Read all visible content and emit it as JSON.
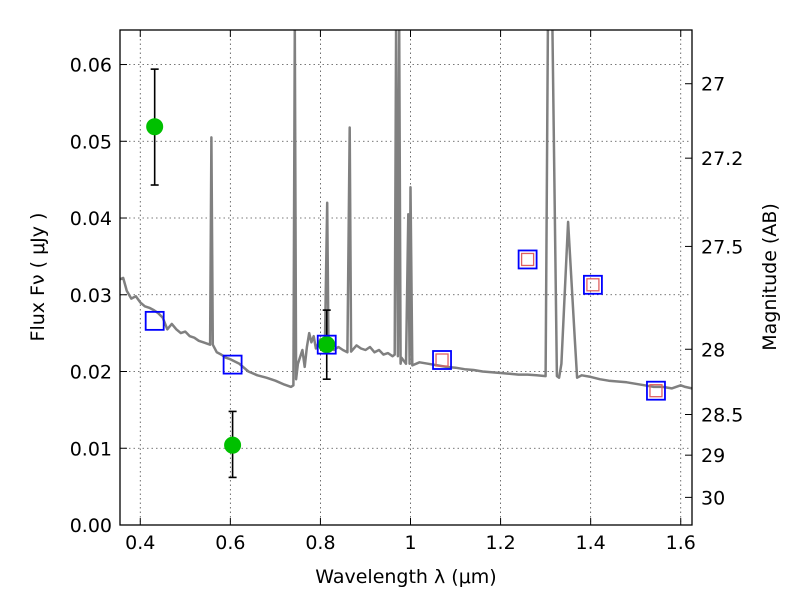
{
  "chart_data": {
    "type": "scatter",
    "xlabel": "Wavelength  λ (μm)",
    "ylabel": "Flux  Fν  ( μJy )",
    "y2label": "Magnitude (AB)",
    "xlim": [
      0.355,
      1.625
    ],
    "ylim": [
      0.0,
      0.0645
    ],
    "grid": true,
    "x_ticks": [
      0.4,
      0.6,
      0.8,
      1.0,
      1.2,
      1.4,
      1.6
    ],
    "x_tick_labels": [
      "0.4",
      "0.6",
      "0.8",
      "1",
      "1.2",
      "1.4",
      "1.6"
    ],
    "y_ticks": [
      0.0,
      0.01,
      0.02,
      0.03,
      0.04,
      0.05,
      0.06
    ],
    "y_tick_labels": [
      "0.00",
      "0.01",
      "0.02",
      "0.03",
      "0.04",
      "0.05",
      "0.06"
    ],
    "y2_ticks": [
      {
        "label": "27",
        "flux": 0.0575
      },
      {
        "label": "27.2",
        "flux": 0.0478
      },
      {
        "label": "27.5",
        "flux": 0.0363
      },
      {
        "label": "28",
        "flux": 0.0229
      },
      {
        "label": "28.5",
        "flux": 0.0144
      },
      {
        "label": "29",
        "flux": 0.0091
      },
      {
        "label": "30",
        "flux": 0.0036
      }
    ],
    "series": [
      {
        "kind": "line",
        "color": "#808080",
        "points": [
          [
            0.355,
            0.032
          ],
          [
            0.362,
            0.0322
          ],
          [
            0.37,
            0.0305
          ],
          [
            0.38,
            0.0295
          ],
          [
            0.39,
            0.0298
          ],
          [
            0.4,
            0.029
          ],
          [
            0.41,
            0.0285
          ],
          [
            0.42,
            0.0283
          ],
          [
            0.43,
            0.028
          ],
          [
            0.44,
            0.0276
          ],
          [
            0.45,
            0.027
          ],
          [
            0.46,
            0.0255
          ],
          [
            0.47,
            0.0262
          ],
          [
            0.48,
            0.0255
          ],
          [
            0.49,
            0.025
          ],
          [
            0.5,
            0.0252
          ],
          [
            0.51,
            0.0246
          ],
          [
            0.52,
            0.0244
          ],
          [
            0.53,
            0.024
          ],
          [
            0.54,
            0.0238
          ],
          [
            0.555,
            0.0235
          ],
          [
            0.558,
            0.0505
          ],
          [
            0.561,
            0.0235
          ],
          [
            0.57,
            0.0225
          ],
          [
            0.58,
            0.0222
          ],
          [
            0.59,
            0.0218
          ],
          [
            0.6,
            0.0216
          ],
          [
            0.62,
            0.021
          ],
          [
            0.64,
            0.02
          ],
          [
            0.66,
            0.0195
          ],
          [
            0.68,
            0.0192
          ],
          [
            0.7,
            0.0188
          ],
          [
            0.72,
            0.0183
          ],
          [
            0.735,
            0.018
          ],
          [
            0.74,
            0.0182
          ],
          [
            0.743,
            0.065
          ],
          [
            0.746,
            0.019
          ],
          [
            0.75,
            0.021
          ],
          [
            0.76,
            0.0228
          ],
          [
            0.765,
            0.0206
          ],
          [
            0.77,
            0.0232
          ],
          [
            0.775,
            0.025
          ],
          [
            0.78,
            0.0238
          ],
          [
            0.785,
            0.0246
          ],
          [
            0.79,
            0.023
          ],
          [
            0.8,
            0.0242
          ],
          [
            0.81,
            0.0235
          ],
          [
            0.815,
            0.042
          ],
          [
            0.818,
            0.023
          ],
          [
            0.82,
            0.0236
          ],
          [
            0.83,
            0.0228
          ],
          [
            0.84,
            0.0232
          ],
          [
            0.85,
            0.0228
          ],
          [
            0.86,
            0.0225
          ],
          [
            0.865,
            0.0518
          ],
          [
            0.868,
            0.0226
          ],
          [
            0.88,
            0.0234
          ],
          [
            0.89,
            0.023
          ],
          [
            0.9,
            0.0228
          ],
          [
            0.91,
            0.0232
          ],
          [
            0.92,
            0.0225
          ],
          [
            0.93,
            0.0228
          ],
          [
            0.94,
            0.0222
          ],
          [
            0.95,
            0.0224
          ],
          [
            0.96,
            0.022
          ],
          [
            0.965,
            0.0222
          ],
          [
            0.968,
            0.065
          ],
          [
            0.972,
            0.022
          ],
          [
            0.975,
            0.065
          ],
          [
            0.978,
            0.021
          ],
          [
            0.98,
            0.0218
          ],
          [
            0.99,
            0.021
          ],
          [
            0.995,
            0.0405
          ],
          [
            0.998,
            0.021
          ],
          [
            1.0,
            0.044
          ],
          [
            1.004,
            0.0208
          ],
          [
            1.02,
            0.0212
          ],
          [
            1.04,
            0.021
          ],
          [
            1.06,
            0.0208
          ],
          [
            1.08,
            0.0206
          ],
          [
            1.1,
            0.0205
          ],
          [
            1.12,
            0.0203
          ],
          [
            1.14,
            0.0202
          ],
          [
            1.16,
            0.02
          ],
          [
            1.18,
            0.0199
          ],
          [
            1.2,
            0.0198
          ],
          [
            1.22,
            0.0197
          ],
          [
            1.24,
            0.0196
          ],
          [
            1.26,
            0.0196
          ],
          [
            1.28,
            0.0195
          ],
          [
            1.3,
            0.0194
          ],
          [
            1.305,
            0.065
          ],
          [
            1.315,
            0.065
          ],
          [
            1.325,
            0.0194
          ],
          [
            1.33,
            0.0192
          ],
          [
            1.335,
            0.021
          ],
          [
            1.35,
            0.0395
          ],
          [
            1.365,
            0.024
          ],
          [
            1.37,
            0.0192
          ],
          [
            1.38,
            0.0195
          ],
          [
            1.4,
            0.0193
          ],
          [
            1.42,
            0.019
          ],
          [
            1.44,
            0.0188
          ],
          [
            1.46,
            0.0187
          ],
          [
            1.48,
            0.0186
          ],
          [
            1.5,
            0.0184
          ],
          [
            1.52,
            0.0182
          ],
          [
            1.54,
            0.018
          ],
          [
            1.56,
            0.018
          ],
          [
            1.58,
            0.0178
          ],
          [
            1.6,
            0.0182
          ],
          [
            1.61,
            0.018
          ],
          [
            1.625,
            0.0178
          ]
        ]
      },
      {
        "kind": "points-errorbar",
        "color": "#00c000",
        "points": [
          {
            "x": 0.432,
            "y": 0.0519,
            "yerr_low": 0.0443,
            "yerr_high": 0.0594
          },
          {
            "x": 0.605,
            "y": 0.0104,
            "yerr_low": 0.0062,
            "yerr_high": 0.0148
          },
          {
            "x": 0.814,
            "y": 0.0235,
            "yerr_low": 0.019,
            "yerr_high": 0.028
          }
        ]
      },
      {
        "kind": "open-square",
        "color": "#0000ff",
        "points": [
          {
            "x": 0.432,
            "y": 0.0266
          },
          {
            "x": 0.605,
            "y": 0.0209
          },
          {
            "x": 0.814,
            "y": 0.0235
          },
          {
            "x": 1.07,
            "y": 0.0215
          },
          {
            "x": 1.26,
            "y": 0.0346
          },
          {
            "x": 1.405,
            "y": 0.0313
          },
          {
            "x": 1.545,
            "y": 0.0175
          }
        ]
      },
      {
        "kind": "open-square-small",
        "color": "#e06060",
        "points": [
          {
            "x": 1.07,
            "y": 0.0215
          },
          {
            "x": 1.26,
            "y": 0.0346
          },
          {
            "x": 1.405,
            "y": 0.0313
          },
          {
            "x": 1.545,
            "y": 0.0175
          }
        ]
      }
    ]
  }
}
